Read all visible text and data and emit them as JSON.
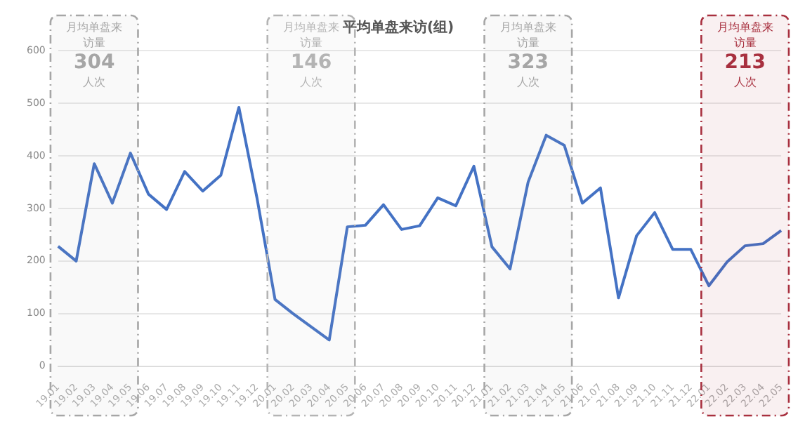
{
  "chart_data": {
    "type": "line",
    "title": "平均单盘来访(组)",
    "categories": [
      "19.01",
      "19.02",
      "19.03",
      "19.04",
      "19.05",
      "19.06",
      "19.07",
      "19.08",
      "19.09",
      "19.10",
      "19.11",
      "19.12",
      "20.01",
      "20.02",
      "20.03",
      "20.04",
      "20.05",
      "20.06",
      "20.07",
      "20.08",
      "20.09",
      "20.10",
      "20.11",
      "20.12",
      "21.01",
      "21.02",
      "21.03",
      "21.04",
      "21.05",
      "21.06",
      "21.07",
      "21.08",
      "21.09",
      "21.10",
      "21.11",
      "21.12",
      "22.01",
      "22.02",
      "22.03",
      "22.04",
      "22.05"
    ],
    "series": [
      {
        "color": "#4472c4",
        "values": [
          228,
          200,
          385,
          310,
          405,
          327,
          298,
          370,
          333,
          363,
          492,
          320,
          127,
          100,
          75,
          50,
          265,
          268,
          307,
          260,
          267,
          320,
          305,
          380,
          227,
          185,
          350,
          439,
          420,
          310,
          339,
          130,
          248,
          292,
          222,
          222,
          153,
          198,
          229,
          233,
          258
        ]
      }
    ],
    "ylim": [
      0,
      600
    ],
    "yticks": [
      0,
      100,
      200,
      300,
      400,
      500,
      600
    ],
    "grid": "y",
    "legend": false,
    "marker": "none",
    "line_style": "solid",
    "bands": [
      {
        "axis": "x",
        "from": "19.01",
        "to": "19.05",
        "label": "月均单盘来访量\n304\n人次",
        "color": "#a6a6a6"
      },
      {
        "axis": "x",
        "from": "20.01",
        "to": "20.05",
        "label": "月均单盘来访量\n146\n人次",
        "color": "#b4b4b4"
      },
      {
        "axis": "x",
        "from": "21.01",
        "to": "21.05",
        "label": "月均单盘来访量\n323\n人次",
        "color": "#a6a6a6"
      },
      {
        "axis": "x",
        "from": "22.01",
        "to": "22.05",
        "label": "月均单盘来访量\n213\n人次",
        "color": "#a8303f"
      }
    ]
  }
}
